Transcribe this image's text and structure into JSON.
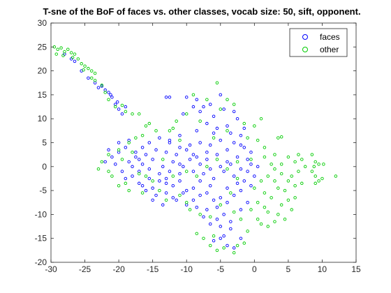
{
  "chart_data": {
    "type": "scatter",
    "title": "T-sne of the BoF of faces vs. other classes, vocab size: 50, sift, opponent.",
    "xlabel": "",
    "ylabel": "",
    "xlim": [
      -30,
      15
    ],
    "ylim": [
      -20,
      30
    ],
    "x_ticks": [
      -30,
      -25,
      -20,
      -15,
      -10,
      -5,
      0,
      5,
      10,
      15
    ],
    "y_ticks": [
      -20,
      -15,
      -10,
      -5,
      0,
      5,
      10,
      15,
      20,
      25,
      30
    ],
    "grid": false,
    "legend_position": "top-right",
    "series": [
      {
        "name": "faces",
        "color": "#0000ff",
        "points": [
          [
            -28.0,
            23.5
          ],
          [
            -27.0,
            22.5
          ],
          [
            -26.5,
            22.0
          ],
          [
            -25.5,
            20.0
          ],
          [
            -24.5,
            18.5
          ],
          [
            -23.5,
            17.5
          ],
          [
            -23.0,
            16.5
          ],
          [
            -22.0,
            16.0
          ],
          [
            -21.5,
            15.5
          ],
          [
            -21.0,
            14.5
          ],
          [
            -20.5,
            13.0
          ],
          [
            -20.0,
            12.0
          ],
          [
            -19.5,
            11.0
          ],
          [
            -22.5,
            16.8
          ],
          [
            -21.2,
            15.0
          ],
          [
            -20.2,
            13.5
          ],
          [
            -19.0,
            12.5
          ],
          [
            -13.0,
            14.5
          ],
          [
            -12.5,
            14.5
          ],
          [
            -10.0,
            14.5
          ],
          [
            -8.5,
            14.0
          ],
          [
            -7.5,
            12.5
          ],
          [
            -8.0,
            11.5
          ],
          [
            -6.5,
            13.0
          ],
          [
            -5.0,
            15.0
          ],
          [
            -4.5,
            12.0
          ],
          [
            -3.0,
            11.5
          ],
          [
            -9.0,
            12.5
          ],
          [
            -10.5,
            11.0
          ],
          [
            -6.0,
            10.5
          ],
          [
            -7.0,
            9.0
          ],
          [
            -5.5,
            8.0
          ],
          [
            -4.0,
            8.5
          ],
          [
            -2.5,
            10.0
          ],
          [
            -3.5,
            7.0
          ],
          [
            -2.0,
            6.5
          ],
          [
            -1.5,
            8.0
          ],
          [
            -6.0,
            7.0
          ],
          [
            -8.5,
            7.5
          ],
          [
            -11.0,
            6.5
          ],
          [
            -12.5,
            5.5
          ],
          [
            -14.0,
            6.0
          ],
          [
            -15.5,
            5.0
          ],
          [
            -16.5,
            4.0
          ],
          [
            -17.5,
            3.0
          ],
          [
            -18.5,
            5.5
          ],
          [
            -19.0,
            4.0
          ],
          [
            -20.0,
            3.0
          ],
          [
            -21.0,
            2.0
          ],
          [
            -22.0,
            1.0
          ],
          [
            -20.5,
            0.5
          ],
          [
            -19.5,
            -1.0
          ],
          [
            -18.0,
            -2.0
          ],
          [
            -17.0,
            -3.5
          ],
          [
            -16.0,
            -5.0
          ],
          [
            -15.0,
            -4.5
          ],
          [
            -14.0,
            -3.0
          ],
          [
            -13.0,
            -2.5
          ],
          [
            -12.0,
            -4.0
          ],
          [
            -11.0,
            -3.0
          ],
          [
            -10.0,
            -5.0
          ],
          [
            -9.0,
            -4.5
          ],
          [
            -8.0,
            -6.0
          ],
          [
            -7.0,
            -5.5
          ],
          [
            -6.0,
            -7.0
          ],
          [
            -5.0,
            -6.5
          ],
          [
            -4.0,
            -7.5
          ],
          [
            -3.0,
            -6.0
          ],
          [
            -2.0,
            -5.0
          ],
          [
            -1.5,
            -3.0
          ],
          [
            -3.0,
            -2.0
          ],
          [
            -4.5,
            -1.0
          ],
          [
            -6.0,
            -2.5
          ],
          [
            -7.5,
            -1.5
          ],
          [
            -9.0,
            -1.0
          ],
          [
            -10.5,
            0.0
          ],
          [
            -12.0,
            1.0
          ],
          [
            -13.5,
            0.0
          ],
          [
            -15.0,
            1.5
          ],
          [
            -16.5,
            0.5
          ],
          [
            -17.5,
            2.0
          ],
          [
            -14.5,
            3.5
          ],
          [
            -13.0,
            3.0
          ],
          [
            -11.5,
            2.5
          ],
          [
            -10.0,
            3.5
          ],
          [
            -8.5,
            2.0
          ],
          [
            -7.0,
            3.0
          ],
          [
            -5.5,
            2.5
          ],
          [
            -4.0,
            3.5
          ],
          [
            -2.5,
            2.0
          ],
          [
            -1.0,
            1.5
          ],
          [
            -1.5,
            4.0
          ],
          [
            -3.0,
            5.0
          ],
          [
            -5.0,
            5.5
          ],
          [
            -6.5,
            4.5
          ],
          [
            -8.0,
            5.0
          ],
          [
            -9.5,
            4.5
          ],
          [
            -11.0,
            4.0
          ],
          [
            -12.5,
            5.0
          ],
          [
            -16.0,
            2.5
          ],
          [
            -18.0,
            0.0
          ],
          [
            -19.0,
            -2.5
          ],
          [
            -16.5,
            -4.0
          ],
          [
            -14.5,
            -6.0
          ],
          [
            -13.0,
            -5.5
          ],
          [
            -11.5,
            -7.0
          ],
          [
            -10.0,
            -8.0
          ],
          [
            -8.5,
            -8.5
          ],
          [
            -7.0,
            -9.0
          ],
          [
            -5.5,
            -8.5
          ],
          [
            -4.5,
            -10.0
          ],
          [
            -3.5,
            -11.5
          ],
          [
            -5.0,
            -12.5
          ],
          [
            -2.0,
            -9.0
          ],
          [
            -1.0,
            -7.5
          ],
          [
            -0.5,
            -4.0
          ],
          [
            0.0,
            -2.0
          ],
          [
            -0.5,
            0.5
          ],
          [
            -2.0,
            -0.5
          ],
          [
            -3.5,
            0.5
          ],
          [
            -5.0,
            0.0
          ],
          [
            -6.5,
            -0.5
          ],
          [
            -8.0,
            0.5
          ],
          [
            -9.5,
            1.5
          ],
          [
            -11.0,
            -1.5
          ],
          [
            -12.5,
            -1.0
          ],
          [
            -14.0,
            -1.5
          ],
          [
            -15.5,
            -2.5
          ],
          [
            -17.0,
            -1.0
          ],
          [
            -18.5,
            1.0
          ],
          [
            -20.0,
            5.0
          ],
          [
            -21.5,
            3.5
          ],
          [
            -5.0,
            -15.0
          ],
          [
            -4.0,
            -16.5
          ],
          [
            -3.0,
            -17.0
          ],
          [
            -4.5,
            -14.5
          ],
          [
            -6.0,
            -15.5
          ],
          [
            -2.0,
            -15.0
          ],
          [
            -3.5,
            -13.0
          ],
          [
            -5.5,
            -11.0
          ],
          [
            -6.5,
            -12.0
          ],
          [
            -7.5,
            -10.5
          ],
          [
            -9.0,
            -7.0
          ],
          [
            -12.0,
            -6.5
          ],
          [
            -13.5,
            -8.0
          ],
          [
            -15.0,
            -7.0
          ],
          [
            -10.5,
            -5.5
          ],
          [
            -8.0,
            -3.0
          ],
          [
            -6.5,
            -4.0
          ],
          [
            -4.0,
            -4.5
          ],
          [
            -2.5,
            -3.5
          ],
          [
            -1.0,
            -1.0
          ],
          [
            0.5,
            0.0
          ],
          [
            -0.5,
            3.0
          ],
          [
            -2.0,
            4.5
          ],
          [
            -4.0,
            1.0
          ],
          [
            -7.0,
            1.5
          ],
          [
            -9.0,
            2.5
          ],
          [
            -11.0,
            0.5
          ],
          [
            -13.0,
            -3.5
          ],
          [
            -15.5,
            -0.5
          ],
          [
            -17.0,
            1.5
          ]
        ]
      },
      {
        "name": "other",
        "color": "#00cc00",
        "points": [
          [
            -29.5,
            25.0
          ],
          [
            -29.0,
            24.5
          ],
          [
            -28.5,
            24.8
          ],
          [
            -28.0,
            24.0
          ],
          [
            -27.5,
            24.5
          ],
          [
            -27.0,
            23.8
          ],
          [
            -26.5,
            23.5
          ],
          [
            -26.0,
            22.5
          ],
          [
            -25.5,
            21.5
          ],
          [
            -25.0,
            21.0
          ],
          [
            -24.5,
            20.5
          ],
          [
            -24.0,
            20.0
          ],
          [
            -23.5,
            19.5
          ],
          [
            -24.0,
            18.5
          ],
          [
            -23.5,
            18.0
          ],
          [
            -22.5,
            17.0
          ],
          [
            -22.0,
            15.5
          ],
          [
            -21.5,
            14.0
          ],
          [
            -20.5,
            12.5
          ],
          [
            -19.5,
            12.8
          ],
          [
            -19.0,
            11.5
          ],
          [
            -18.0,
            11.0
          ],
          [
            -17.0,
            11.0
          ],
          [
            -29.2,
            23.5
          ],
          [
            -28.2,
            23.2
          ],
          [
            -26.8,
            22.8
          ],
          [
            -25.2,
            20.2
          ],
          [
            -12.0,
            8.0
          ],
          [
            -14.5,
            7.5
          ],
          [
            -16.0,
            8.5
          ],
          [
            -17.5,
            6.0
          ],
          [
            -18.5,
            5.0
          ],
          [
            -20.0,
            3.5
          ],
          [
            -21.5,
            2.5
          ],
          [
            -22.5,
            1.0
          ],
          [
            -23.0,
            -0.5
          ],
          [
            -21.0,
            -2.0
          ],
          [
            -20.0,
            -4.0
          ],
          [
            -18.5,
            -5.0
          ],
          [
            -16.5,
            -5.5
          ],
          [
            -14.0,
            -5.0
          ],
          [
            -13.0,
            -7.0
          ],
          [
            -11.0,
            -6.0
          ],
          [
            -10.0,
            -7.5
          ],
          [
            -9.5,
            -9.0
          ],
          [
            -8.0,
            -10.0
          ],
          [
            -6.5,
            -10.5
          ],
          [
            -6.0,
            -14.5
          ],
          [
            -6.5,
            -16.5
          ],
          [
            -5.5,
            -17.5
          ],
          [
            -4.5,
            -17.0
          ],
          [
            -3.0,
            -18.0
          ],
          [
            -2.5,
            -16.5
          ],
          [
            -1.5,
            -16.0
          ],
          [
            -7.5,
            -15.0
          ],
          [
            -8.5,
            -14.0
          ],
          [
            1.0,
            -12.0
          ],
          [
            2.0,
            -12.5
          ],
          [
            3.0,
            -11.5
          ],
          [
            3.5,
            -10.0
          ],
          [
            4.0,
            -8.0
          ],
          [
            5.0,
            -7.0
          ],
          [
            4.5,
            -5.0
          ],
          [
            6.0,
            -4.0
          ],
          [
            7.0,
            -3.5
          ],
          [
            5.5,
            -2.0
          ],
          [
            6.5,
            -1.0
          ],
          [
            7.5,
            0.0
          ],
          [
            6.0,
            1.0
          ],
          [
            5.0,
            2.0
          ],
          [
            4.0,
            0.5
          ],
          [
            3.0,
            -0.5
          ],
          [
            2.0,
            -2.0
          ],
          [
            1.0,
            -3.0
          ],
          [
            0.0,
            -4.5
          ],
          [
            1.5,
            -5.5
          ],
          [
            2.5,
            -6.5
          ],
          [
            0.5,
            -7.5
          ],
          [
            -0.5,
            -9.0
          ],
          [
            1.5,
            -8.5
          ],
          [
            3.0,
            -3.0
          ],
          [
            4.0,
            -1.5
          ],
          [
            5.0,
            -3.0
          ],
          [
            6.5,
            2.5
          ],
          [
            7.0,
            1.5
          ],
          [
            8.5,
            2.5
          ],
          [
            9.0,
            1.0
          ],
          [
            9.5,
            0.5
          ],
          [
            8.5,
            -1.0
          ],
          [
            9.0,
            -2.0
          ],
          [
            9.5,
            -3.0
          ],
          [
            10.0,
            -2.5
          ],
          [
            9.0,
            -3.5
          ],
          [
            8.8,
            0.0
          ],
          [
            10.2,
            0.5
          ],
          [
            12.0,
            -2.0
          ],
          [
            3.5,
            6.0
          ],
          [
            4.0,
            6.2
          ],
          [
            1.0,
            10.0
          ],
          [
            0.0,
            8.5
          ],
          [
            -1.0,
            6.0
          ],
          [
            1.5,
            4.0
          ],
          [
            -0.5,
            1.5
          ],
          [
            -2.5,
            1.0
          ],
          [
            -4.0,
            7.5
          ],
          [
            -5.0,
            12.0
          ],
          [
            -4.0,
            14.0
          ],
          [
            -5.5,
            17.5
          ],
          [
            -3.0,
            13.0
          ],
          [
            -7.0,
            14.0
          ],
          [
            -9.0,
            15.0
          ],
          [
            -10.0,
            11.0
          ],
          [
            -11.5,
            9.5
          ],
          [
            -12.5,
            7.5
          ],
          [
            -15.5,
            9.0
          ],
          [
            -16.5,
            6.5
          ],
          [
            -18.0,
            3.0
          ],
          [
            -19.5,
            1.5
          ],
          [
            -17.0,
            -1.5
          ],
          [
            -15.0,
            -3.0
          ],
          [
            -12.0,
            -2.0
          ],
          [
            -10.0,
            -1.0
          ],
          [
            -8.5,
            -2.0
          ],
          [
            -7.0,
            0.0
          ],
          [
            -5.5,
            1.5
          ],
          [
            -4.0,
            -0.5
          ],
          [
            -2.5,
            -2.5
          ],
          [
            -3.5,
            -5.5
          ],
          [
            -5.0,
            -8.0
          ],
          [
            -3.0,
            -9.5
          ],
          [
            -2.0,
            -11.0
          ],
          [
            -1.0,
            -13.5
          ],
          [
            0.5,
            -11.0
          ],
          [
            2.0,
            -9.5
          ],
          [
            4.5,
            -11.0
          ],
          [
            5.5,
            -9.0
          ],
          [
            6.0,
            -6.5
          ],
          [
            3.5,
            -4.5
          ],
          [
            2.5,
            0.5
          ],
          [
            1.5,
            2.0
          ],
          [
            3.0,
            2.5
          ],
          [
            0.5,
            5.5
          ],
          [
            -1.5,
            9.0
          ],
          [
            -6.0,
            6.0
          ],
          [
            -8.0,
            9.5
          ],
          [
            -11.0,
            5.5
          ],
          [
            -13.5,
            1.5
          ],
          [
            -16.0,
            -2.0
          ],
          [
            -19.0,
            -3.5
          ],
          [
            -21.5,
            -1.0
          ]
        ]
      }
    ]
  }
}
